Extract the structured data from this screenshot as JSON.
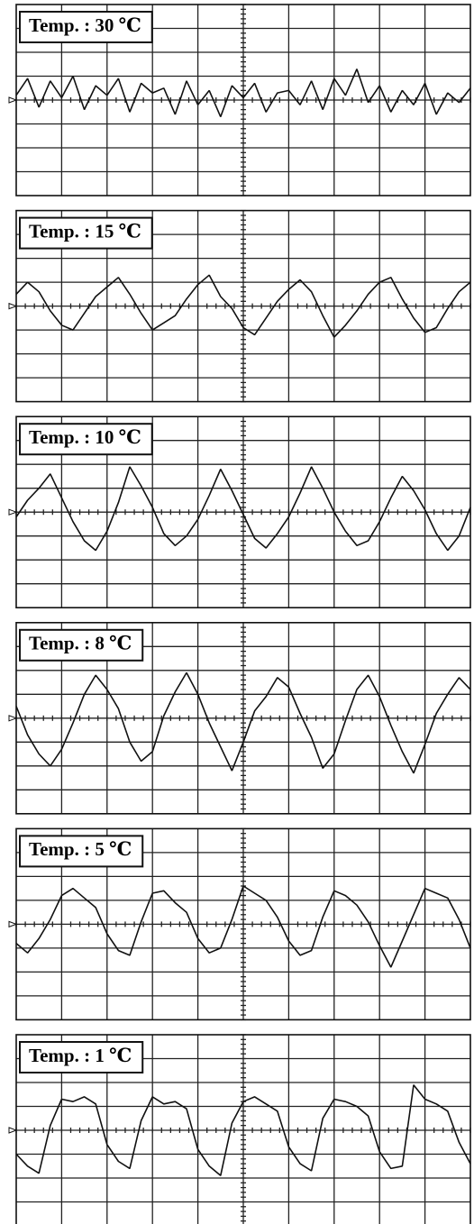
{
  "chart_data": [
    {
      "type": "line",
      "title": "Temp. : 30 ℃",
      "xlim": [
        0,
        10
      ],
      "ylim": [
        -4,
        4
      ],
      "grid": true,
      "color": "#111111",
      "x": [
        0,
        0.25,
        0.5,
        0.75,
        1,
        1.25,
        1.5,
        1.75,
        2,
        2.25,
        2.5,
        2.75,
        3,
        3.25,
        3.5,
        3.75,
        4,
        4.25,
        4.5,
        4.75,
        5,
        5.25,
        5.5,
        5.75,
        6,
        6.25,
        6.5,
        6.75,
        7,
        7.25,
        7.5,
        7.75,
        8,
        8.25,
        8.5,
        8.75,
        9,
        9.25,
        9.5,
        9.75,
        10
      ],
      "values": [
        0.2,
        0.9,
        -0.3,
        0.8,
        0.1,
        1.0,
        -0.4,
        0.6,
        0.2,
        0.9,
        -0.5,
        0.7,
        0.3,
        0.5,
        -0.6,
        0.8,
        -0.2,
        0.4,
        -0.7,
        0.6,
        0.1,
        0.7,
        -0.5,
        0.3,
        0.4,
        -0.2,
        0.8,
        -0.4,
        0.9,
        0.2,
        1.3,
        -0.1,
        0.6,
        -0.5,
        0.4,
        -0.2,
        0.7,
        -0.6,
        0.3,
        -0.1,
        0.5
      ]
    },
    {
      "type": "line",
      "title": "Temp. : 15 ℃",
      "xlim": [
        0,
        10
      ],
      "ylim": [
        -4,
        4
      ],
      "grid": true,
      "color": "#111111",
      "x": [
        0,
        0.25,
        0.5,
        0.75,
        1,
        1.25,
        1.5,
        1.75,
        2,
        2.25,
        2.5,
        2.75,
        3,
        3.25,
        3.5,
        3.75,
        4,
        4.25,
        4.5,
        4.75,
        5,
        5.25,
        5.5,
        5.75,
        6,
        6.25,
        6.5,
        6.75,
        7,
        7.25,
        7.5,
        7.75,
        8,
        8.25,
        8.5,
        8.75,
        9,
        9.25,
        9.5,
        9.75,
        10
      ],
      "values": [
        0.5,
        1.0,
        0.6,
        -0.2,
        -0.8,
        -1.0,
        -0.3,
        0.4,
        0.8,
        1.2,
        0.5,
        -0.3,
        -1.0,
        -0.7,
        -0.4,
        0.3,
        0.9,
        1.3,
        0.4,
        -0.1,
        -0.9,
        -1.2,
        -0.5,
        0.2,
        0.7,
        1.1,
        0.6,
        -0.4,
        -1.3,
        -0.8,
        -0.2,
        0.5,
        1.0,
        1.2,
        0.3,
        -0.5,
        -1.1,
        -0.9,
        -0.1,
        0.6,
        1.0
      ]
    },
    {
      "type": "line",
      "title": "Temp. : 10 ℃",
      "xlim": [
        0,
        10
      ],
      "ylim": [
        -4,
        4
      ],
      "grid": true,
      "color": "#111111",
      "x": [
        0,
        0.25,
        0.5,
        0.75,
        1,
        1.25,
        1.5,
        1.75,
        2,
        2.25,
        2.5,
        2.75,
        3,
        3.25,
        3.5,
        3.75,
        4,
        4.25,
        4.5,
        4.75,
        5,
        5.25,
        5.5,
        5.75,
        6,
        6.25,
        6.5,
        6.75,
        7,
        7.25,
        7.5,
        7.75,
        8,
        8.25,
        8.5,
        8.75,
        9,
        9.25,
        9.5,
        9.75,
        10
      ],
      "values": [
        -0.2,
        0.5,
        1.0,
        1.6,
        0.6,
        -0.4,
        -1.2,
        -1.6,
        -0.8,
        0.4,
        1.9,
        1.1,
        0.2,
        -0.9,
        -1.4,
        -1.0,
        -0.3,
        0.7,
        1.8,
        0.9,
        -0.1,
        -1.1,
        -1.5,
        -0.9,
        -0.2,
        0.8,
        1.9,
        1.0,
        0.0,
        -0.8,
        -1.4,
        -1.2,
        -0.4,
        0.6,
        1.5,
        0.9,
        0.1,
        -0.9,
        -1.6,
        -1.0,
        0.2
      ]
    },
    {
      "type": "line",
      "title": "Temp. : 8 ℃",
      "xlim": [
        0,
        10
      ],
      "ylim": [
        -4,
        4
      ],
      "grid": true,
      "color": "#111111",
      "x": [
        0,
        0.25,
        0.5,
        0.75,
        1,
        1.25,
        1.5,
        1.75,
        2,
        2.25,
        2.5,
        2.75,
        3,
        3.25,
        3.5,
        3.75,
        4,
        4.25,
        4.5,
        4.75,
        5,
        5.25,
        5.5,
        5.75,
        6,
        6.25,
        6.5,
        6.75,
        7,
        7.25,
        7.5,
        7.75,
        8,
        8.25,
        8.5,
        8.75,
        9,
        9.25,
        9.5,
        9.75,
        10
      ],
      "values": [
        0.5,
        -0.7,
        -1.5,
        -2.0,
        -1.3,
        -0.2,
        1.0,
        1.8,
        1.2,
        0.4,
        -1.0,
        -1.8,
        -1.4,
        0.1,
        1.1,
        1.9,
        1.0,
        -0.2,
        -1.2,
        -2.2,
        -1.0,
        0.3,
        0.9,
        1.7,
        1.3,
        0.2,
        -0.8,
        -2.1,
        -1.5,
        -0.1,
        1.2,
        1.8,
        0.9,
        -0.3,
        -1.4,
        -2.3,
        -1.1,
        0.2,
        1.0,
        1.7,
        1.2
      ]
    },
    {
      "type": "line",
      "title": "Temp. : 5 ℃",
      "xlim": [
        0,
        10
      ],
      "ylim": [
        -4,
        4
      ],
      "grid": true,
      "color": "#111111",
      "x": [
        0,
        0.25,
        0.5,
        0.75,
        1,
        1.25,
        1.5,
        1.75,
        2,
        2.25,
        2.5,
        2.75,
        3,
        3.25,
        3.5,
        3.75,
        4,
        4.25,
        4.5,
        4.75,
        5,
        5.25,
        5.5,
        5.75,
        6,
        6.25,
        6.5,
        6.75,
        7,
        7.25,
        7.5,
        7.75,
        8,
        8.25,
        8.5,
        8.75,
        9,
        9.25,
        9.5,
        9.75,
        10
      ],
      "values": [
        -0.8,
        -1.2,
        -0.6,
        0.2,
        1.2,
        1.5,
        1.1,
        0.7,
        -0.4,
        -1.1,
        -1.3,
        0.1,
        1.3,
        1.4,
        0.9,
        0.5,
        -0.6,
        -1.2,
        -1.0,
        0.2,
        1.6,
        1.3,
        1.0,
        0.3,
        -0.7,
        -1.3,
        -1.1,
        0.3,
        1.4,
        1.2,
        0.8,
        0.1,
        -0.9,
        -1.8,
        -0.7,
        0.4,
        1.5,
        1.3,
        1.1,
        0.2,
        -1.0
      ]
    },
    {
      "type": "line",
      "title": "Temp. : 1 ℃",
      "xlim": [
        0,
        10
      ],
      "ylim": [
        -4,
        4
      ],
      "grid": true,
      "color": "#111111",
      "x": [
        0,
        0.25,
        0.5,
        0.75,
        1,
        1.25,
        1.5,
        1.75,
        2,
        2.25,
        2.5,
        2.75,
        3,
        3.25,
        3.5,
        3.75,
        4,
        4.25,
        4.5,
        4.75,
        5,
        5.25,
        5.5,
        5.75,
        6,
        6.25,
        6.5,
        6.75,
        7,
        7.25,
        7.5,
        7.75,
        8,
        8.25,
        8.5,
        8.75,
        9,
        9.25,
        9.5,
        9.75,
        10
      ],
      "values": [
        -1.0,
        -1.5,
        -1.8,
        0.2,
        1.3,
        1.2,
        1.4,
        1.1,
        -0.6,
        -1.3,
        -1.6,
        0.4,
        1.4,
        1.1,
        1.2,
        0.9,
        -0.8,
        -1.5,
        -1.9,
        0.3,
        1.2,
        1.4,
        1.1,
        0.8,
        -0.7,
        -1.4,
        -1.7,
        0.5,
        1.3,
        1.2,
        1.0,
        0.6,
        -0.9,
        -1.6,
        -1.5,
        1.9,
        1.3,
        1.1,
        0.8,
        -0.5,
        -1.4
      ]
    }
  ]
}
